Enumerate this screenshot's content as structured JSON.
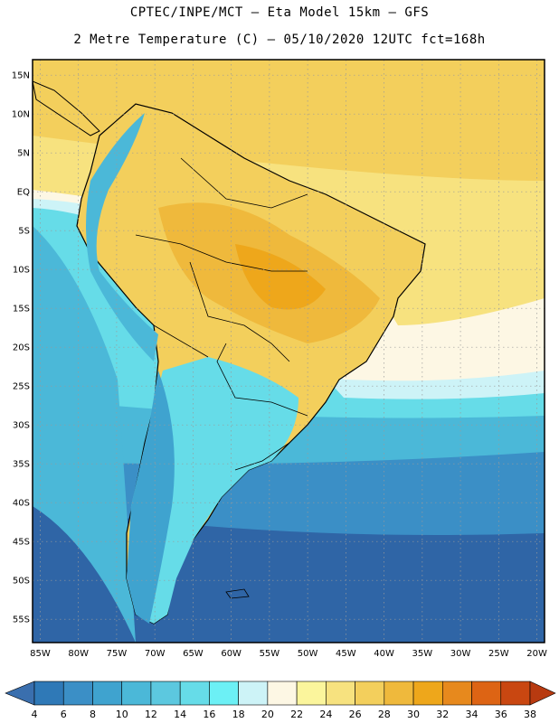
{
  "header": {
    "line1": "CPTEC/INPE/MCT –  Eta Model 15km – GFS",
    "line2": "2 Metre Temperature (C) – 05/10/2020 12UTC fct=168h"
  },
  "map": {
    "lat_labels": [
      "15N",
      "10N",
      "5N",
      "EQ",
      "5S",
      "10S",
      "15S",
      "20S",
      "25S",
      "30S",
      "35S",
      "40S",
      "45S",
      "50S",
      "55S"
    ],
    "lat_values": [
      15,
      10,
      5,
      0,
      -5,
      -10,
      -15,
      -20,
      -25,
      -30,
      -35,
      -40,
      -45,
      -50,
      -55
    ],
    "lon_labels": [
      "85W",
      "80W",
      "75W",
      "70W",
      "65W",
      "60W",
      "55W",
      "50W",
      "45W",
      "40W",
      "35W",
      "30W",
      "25W",
      "20W"
    ],
    "lon_values": [
      -85,
      -80,
      -75,
      -70,
      -65,
      -60,
      -55,
      -50,
      -45,
      -40,
      -35,
      -30,
      -25,
      -20
    ],
    "lon_range": [
      -86,
      -19
    ],
    "lat_range": [
      -58,
      17
    ],
    "grid": true
  },
  "colorbar": {
    "labels": [
      "4",
      "6",
      "8",
      "10",
      "12",
      "14",
      "16",
      "18",
      "20",
      "22",
      "24",
      "26",
      "28",
      "30",
      "32",
      "34",
      "36",
      "38"
    ],
    "colors": [
      "#3a6fae",
      "#2f79b7",
      "#3b8fc6",
      "#3fa3cf",
      "#4bb8d8",
      "#5cc8df",
      "#66dce8",
      "#6cf0f5",
      "#cdf3f7",
      "#fdf7e4",
      "#fbf59c",
      "#f7e27f",
      "#f3cf5c",
      "#efb93c",
      "#eea71b",
      "#e7891d",
      "#dd6414",
      "#c94711",
      "#b83a10"
    ]
  }
}
